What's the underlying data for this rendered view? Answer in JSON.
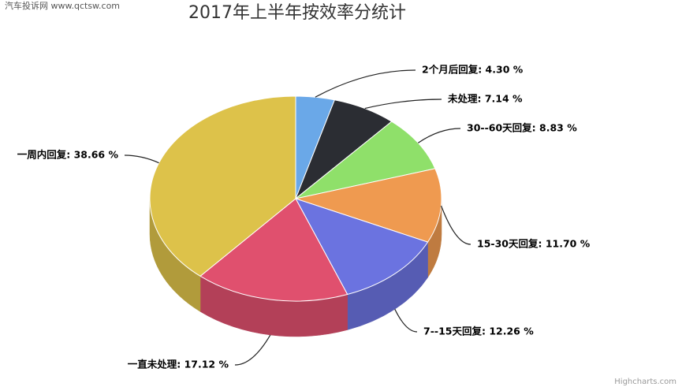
{
  "watermark": "汽车投诉网  www.qctsw.com",
  "credits": "Highcharts.com",
  "chart_data": {
    "type": "pie3d",
    "title": "2017年上半年按效率分统计",
    "values": [
      4.3,
      7.14,
      8.83,
      11.7,
      12.26,
      17.12,
      38.66
    ],
    "value_labels": [
      "2个月后回复: 4.30 %",
      "未处理: 7.14 %",
      "30--60天回复: 8.83 %",
      "15-30天回复: 11.70 %",
      "7--15天回复: 12.26 %",
      "一直未处理: 17.12 %",
      "一周内回复: 38.66 %"
    ],
    "colors": [
      "#6aa8e8",
      "#2b2d33",
      "#8fe06a",
      "#ef9a50",
      "#6b73e0",
      "#e0506e",
      "#ddc24a"
    ]
  }
}
